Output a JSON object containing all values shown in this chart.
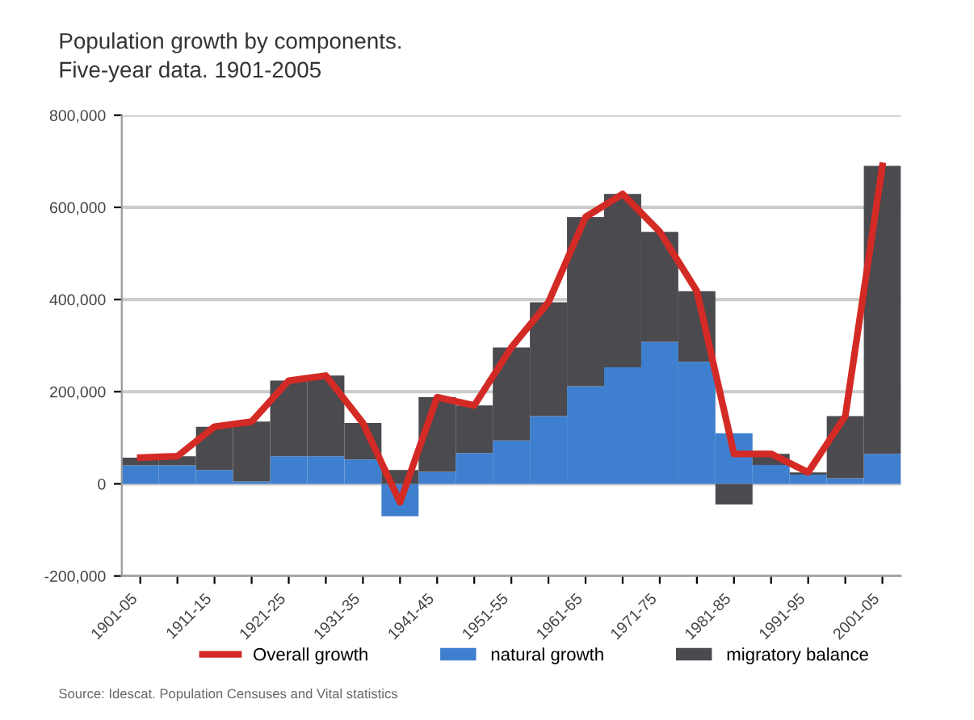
{
  "chart_data": {
    "type": "bar",
    "title": "Population growth by components.",
    "subtitle": "Five-year data. 1901-2005",
    "categories": [
      "1901-05",
      null,
      "1911-15",
      null,
      "1921-25",
      null,
      "1931-35",
      null,
      "1941-45",
      null,
      "1951-55",
      null,
      "1961-65",
      null,
      "1971-75",
      null,
      "1981-85",
      null,
      "1991-95",
      null,
      "2001-05"
    ],
    "stacked": true,
    "series": [
      {
        "name": "Overall growth",
        "type": "line",
        "color": "#d42a25",
        "values": [
          57000,
          60000,
          124000,
          135000,
          224000,
          235000,
          132000,
          -40000,
          188000,
          170000,
          296000,
          394000,
          579000,
          629000,
          547000,
          418000,
          65000,
          65000,
          25000,
          147000,
          690000
        ]
      },
      {
        "name": "natural growth",
        "color": "#3f7fcf",
        "values": [
          40000,
          40000,
          30000,
          5000,
          60000,
          60000,
          53000,
          -70000,
          26000,
          67000,
          94000,
          147000,
          212000,
          253000,
          308000,
          265000,
          110000,
          41000,
          20000,
          12000,
          65000
        ]
      },
      {
        "name": "migratory balance",
        "color": "#4a4a4f",
        "values": [
          17000,
          20000,
          94000,
          130000,
          164000,
          175000,
          79000,
          30000,
          162000,
          103000,
          202000,
          247000,
          367000,
          376000,
          239000,
          153000,
          -45000,
          24000,
          5000,
          135000,
          625000
        ]
      }
    ],
    "ylim": [
      -200000,
      800000
    ],
    "yticks": [
      {
        "value": -200000,
        "label": "-200,000"
      },
      {
        "value": 0,
        "label": "0"
      },
      {
        "value": 200000,
        "label": "200,000"
      },
      {
        "value": 400000,
        "label": "400,000"
      },
      {
        "value": 600000,
        "label": "600,000"
      },
      {
        "value": 800000,
        "label": "800,000"
      }
    ],
    "grid": "y",
    "legend": "bottom",
    "annotations": [
      "Source: Idescat. Population Censuses and Vital statistics"
    ]
  }
}
